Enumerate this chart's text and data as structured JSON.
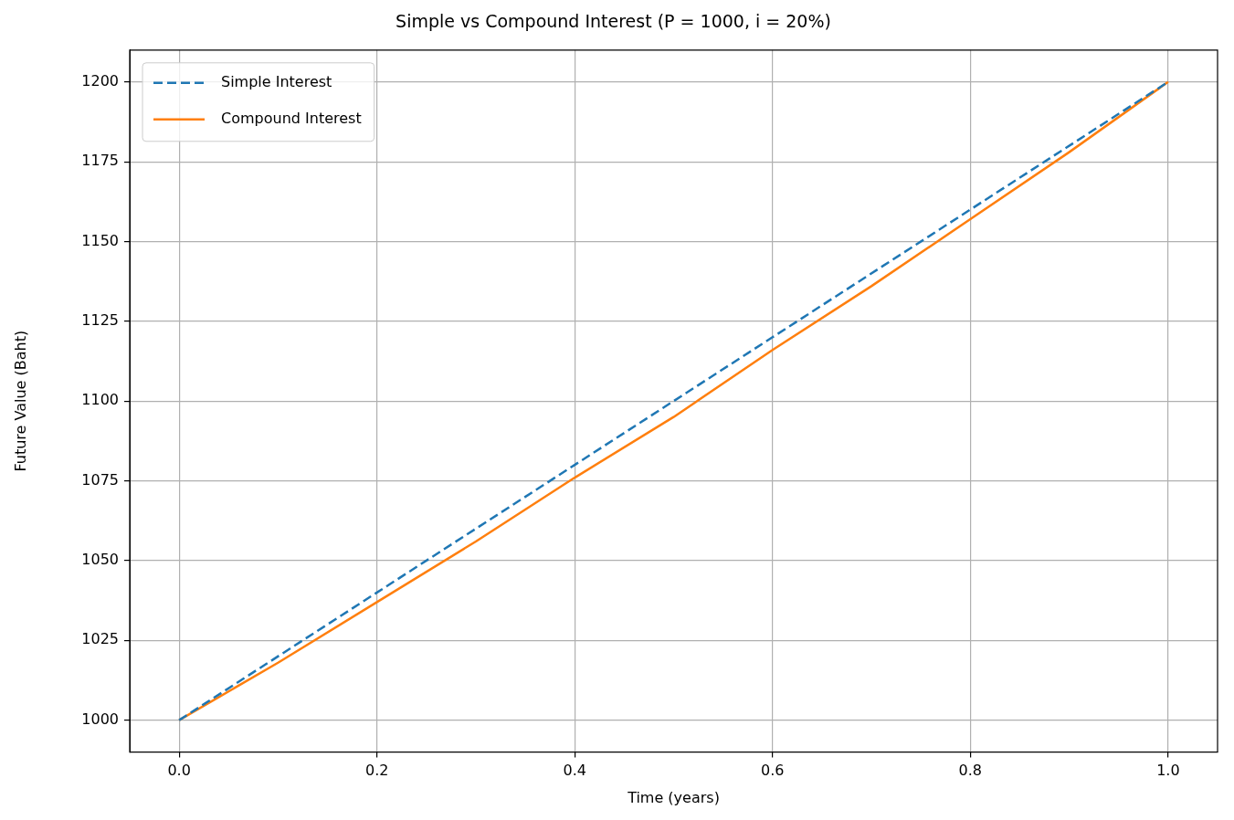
{
  "chart_data": {
    "type": "line",
    "title": "Simple vs Compound Interest (P = 1000, i = 20%)",
    "xlabel": "Time (years)",
    "ylabel": "Future Value (Baht)",
    "series": [
      {
        "name": "Simple Interest",
        "color": "#1f77b4",
        "line_style": "dashed",
        "x": [
          0,
          0.2,
          0.4,
          0.6,
          0.8,
          1.0
        ],
        "values": [
          1000,
          1040,
          1080,
          1120,
          1160,
          1200
        ]
      },
      {
        "name": "Compound Interest",
        "color": "#ff7f0e",
        "line_style": "solid",
        "x": [
          0,
          0.1,
          0.2,
          0.3,
          0.4,
          0.5,
          0.6,
          0.7,
          0.8,
          0.9,
          1.0
        ],
        "values": [
          1000,
          1018,
          1037,
          1056,
          1076,
          1095,
          1116,
          1136,
          1157,
          1178,
          1200
        ]
      }
    ],
    "xlim": [
      -0.05,
      1.05
    ],
    "xticks": [
      {
        "value": 0,
        "label": "0.0"
      },
      0.2,
      0.4,
      0.6,
      0.8,
      {
        "value": 1,
        "label": "1.0"
      }
    ],
    "ylim": [
      990,
      1210
    ],
    "yticks": [
      1000,
      1025,
      1050,
      1075,
      1100,
      1125,
      1150,
      1175,
      1200
    ],
    "grid": true,
    "legend": "top left",
    "marker": "none"
  }
}
